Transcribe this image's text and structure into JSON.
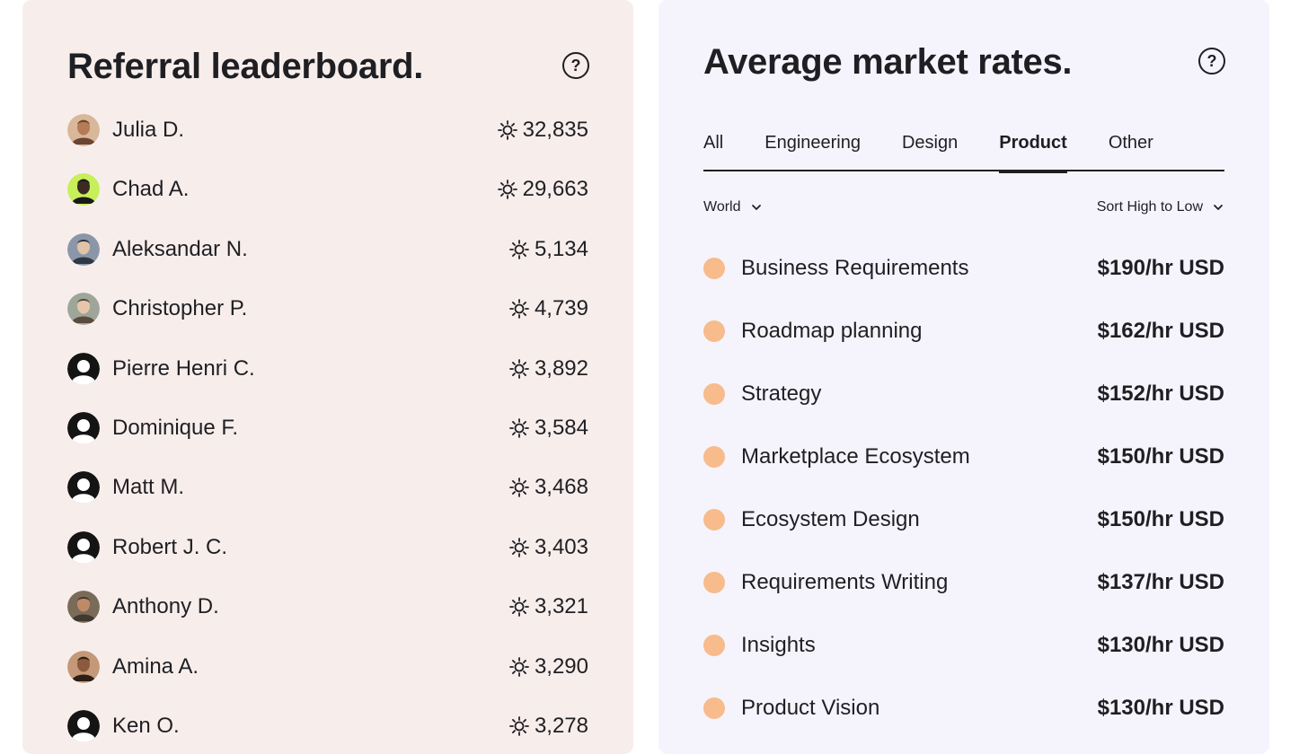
{
  "leaderboard": {
    "title": "Referral leaderboard.",
    "help_icon": "question-circle-icon",
    "score_icon": "sun-icon",
    "entries": [
      {
        "name": "Julia D.",
        "score": "32,835",
        "avatar": "photo"
      },
      {
        "name": "Chad A.",
        "score": "29,663",
        "avatar": "photo"
      },
      {
        "name": "Aleksandar N.",
        "score": "5,134",
        "avatar": "photo"
      },
      {
        "name": "Christopher P.",
        "score": "4,739",
        "avatar": "photo"
      },
      {
        "name": "Pierre Henri C.",
        "score": "3,892",
        "avatar": "default"
      },
      {
        "name": "Dominique F.",
        "score": "3,584",
        "avatar": "default"
      },
      {
        "name": "Matt M.",
        "score": "3,468",
        "avatar": "default"
      },
      {
        "name": "Robert J. C.",
        "score": "3,403",
        "avatar": "default"
      },
      {
        "name": "Anthony D.",
        "score": "3,321",
        "avatar": "photo"
      },
      {
        "name": "Amina A.",
        "score": "3,290",
        "avatar": "photo"
      },
      {
        "name": "Ken O.",
        "score": "3,278",
        "avatar": "default"
      }
    ]
  },
  "rates": {
    "title": "Average market rates.",
    "help_icon": "question-circle-icon",
    "tabs": [
      {
        "label": "All",
        "active": false
      },
      {
        "label": "Engineering",
        "active": false
      },
      {
        "label": "Design",
        "active": false
      },
      {
        "label": "Product",
        "active": true
      },
      {
        "label": "Other",
        "active": false
      }
    ],
    "region_filter": "World",
    "sort_filter": "Sort High to Low",
    "dot_color": "#f7bb8c",
    "items": [
      {
        "name": "Business Requirements",
        "rate": "$190/hr USD"
      },
      {
        "name": "Roadmap planning",
        "rate": "$162/hr USD"
      },
      {
        "name": "Strategy",
        "rate": "$152/hr USD"
      },
      {
        "name": "Marketplace Ecosystem",
        "rate": "$150/hr USD"
      },
      {
        "name": "Ecosystem Design",
        "rate": "$150/hr USD"
      },
      {
        "name": "Requirements Writing",
        "rate": "$137/hr USD"
      },
      {
        "name": "Insights",
        "rate": "$130/hr USD"
      },
      {
        "name": "Product Vision",
        "rate": "$130/hr USD"
      }
    ]
  },
  "colors": {
    "left_bg": "#f7eeec",
    "right_bg": "#f5f4fc",
    "text": "#1f1f23",
    "accent_dot": "#f7bb8c"
  }
}
